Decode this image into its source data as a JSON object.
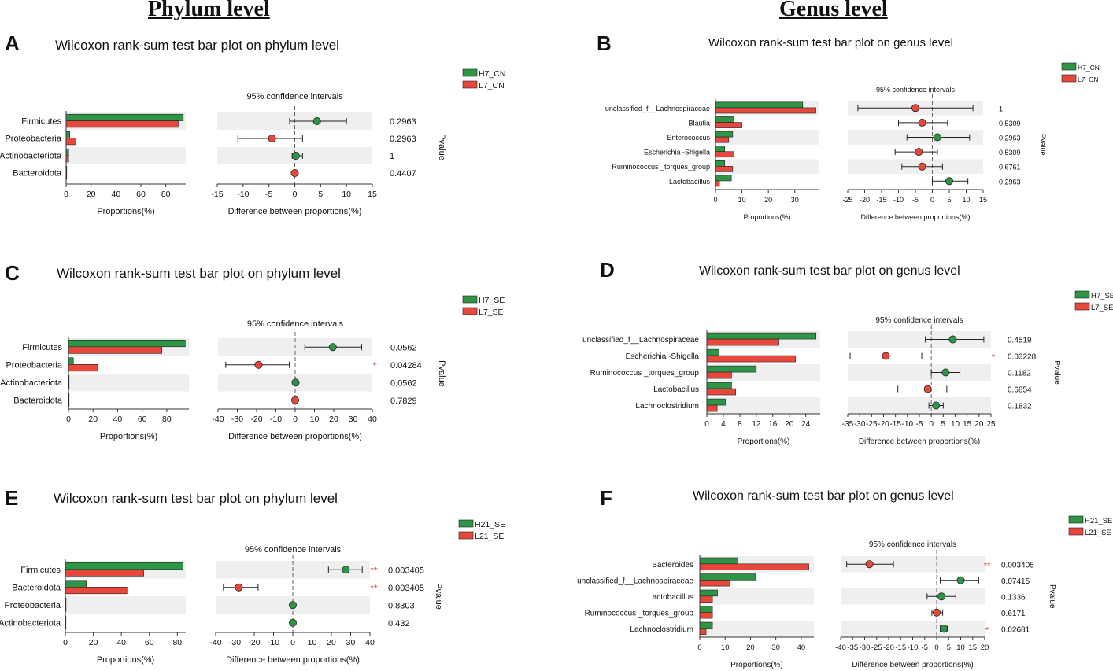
{
  "headings": {
    "phylum": "Phylum level",
    "genus": "Genus level"
  },
  "colors": {
    "first_group": "#2e9446",
    "second_group": "#e8473c",
    "stripe": "#efefef",
    "star": "#e8473c",
    "axis": "#333333"
  },
  "chart_data": [
    {
      "id": "A",
      "type": "bar",
      "title": "Wilcoxon rank-sum test bar plot on phylum level",
      "legend": [
        "H7_CN",
        "L7_CN"
      ],
      "categories": [
        "Firmicutes",
        "Proteobacteria",
        "Actinobacteriota",
        "Bacteroidota"
      ],
      "series": [
        {
          "name": "H7_CN",
          "values": [
            94,
            3,
            2,
            0.5
          ]
        },
        {
          "name": "L7_CN",
          "values": [
            90,
            8,
            2,
            0.5
          ]
        }
      ],
      "bar_xticks": [
        "0",
        "20",
        "40",
        "60",
        "80"
      ],
      "bar_xlim": [
        0,
        96
      ],
      "xlabel": "Proportions(%)",
      "ci_title": "95% confidence intervals",
      "ci_xticks": [
        "-15",
        "-10",
        "-5",
        "0",
        "5",
        "10",
        "15"
      ],
      "ci_xlim": [
        -15,
        15
      ],
      "ci_xlabel": "Difference between proportions(%)",
      "ci": [
        {
          "center": 4.3,
          "low": -1,
          "high": 10,
          "group": "H7_CN"
        },
        {
          "center": -4.4,
          "low": -11,
          "high": 1.5,
          "group": "L7_CN"
        },
        {
          "center": 0.2,
          "low": -0.5,
          "high": 1.5,
          "group": "H7_CN"
        },
        {
          "center": 0,
          "low": 0,
          "high": 0,
          "group": "L7_CN"
        }
      ],
      "pvalues": [
        "0.2963",
        "0.2963",
        "1",
        "0.4407"
      ],
      "stars": [
        "",
        "",
        "",
        ""
      ],
      "pvalue_label": "Pvalue"
    },
    {
      "id": "B",
      "type": "bar",
      "title": "Wilcoxon rank-sum test bar plot on genus level",
      "legend": [
        "H7_CN",
        "L7_CN"
      ],
      "categories": [
        "unclassified_f__Lachnospiraceae",
        "Blautia",
        "Enterococcus",
        "Escherichia -Shigella",
        "Ruminococcus _torques_group",
        "Lactobacillus"
      ],
      "series": [
        {
          "name": "H7_CN",
          "values": [
            33,
            7,
            6.5,
            3.5,
            3.5,
            6
          ]
        },
        {
          "name": "L7_CN",
          "values": [
            38,
            10,
            5,
            7,
            6.5,
            1.5
          ]
        }
      ],
      "bar_xticks": [
        "0",
        "10",
        "20",
        "30"
      ],
      "bar_xlim": [
        0,
        39
      ],
      "xlabel": "Proportions(%)",
      "ci_title": "95% confidence intervals",
      "ci_xticks": [
        "-25",
        "-20",
        "-15",
        "-10",
        "-5",
        "0",
        "5",
        "10",
        "15"
      ],
      "ci_xlim": [
        -25,
        15
      ],
      "ci_xlabel": "Difference between proportions(%)",
      "ci": [
        {
          "center": -5,
          "low": -22,
          "high": 12,
          "group": "L7_CN"
        },
        {
          "center": -3,
          "low": -10,
          "high": 4.5,
          "group": "L7_CN"
        },
        {
          "center": 1.5,
          "low": -7.5,
          "high": 11,
          "group": "H7_CN"
        },
        {
          "center": -4,
          "low": -11,
          "high": 1.5,
          "group": "L7_CN"
        },
        {
          "center": -3,
          "low": -9,
          "high": 3,
          "group": "L7_CN"
        },
        {
          "center": 5,
          "low": 0,
          "high": 10.5,
          "group": "H7_CN"
        }
      ],
      "pvalues": [
        "1",
        "0.5309",
        "0.2963",
        "0.5309",
        "0.6761",
        "0.2963"
      ],
      "stars": [
        "",
        "",
        "",
        "",
        "",
        ""
      ],
      "pvalue_label": "Pvalue"
    },
    {
      "id": "C",
      "type": "bar",
      "title": "Wilcoxon rank-sum test bar plot on phylum level",
      "legend": [
        "H7_SE",
        "L7_SE"
      ],
      "categories": [
        "Firmicutes",
        "Proteobacteria",
        "Actinobacteriota",
        "Bacteroidota"
      ],
      "series": [
        {
          "name": "H7_SE",
          "values": [
            95,
            4,
            0.5,
            0.5
          ]
        },
        {
          "name": "L7_SE",
          "values": [
            76,
            24,
            0.5,
            0.3
          ]
        }
      ],
      "bar_xticks": [
        "0",
        "20",
        "40",
        "60",
        "80"
      ],
      "bar_xlim": [
        0,
        98
      ],
      "xlabel": "Proportions(%)",
      "ci_title": "95% confidence intervals",
      "ci_xticks": [
        "-40",
        "-30",
        "-20",
        "-10",
        "0",
        "10",
        "20",
        "30",
        "40"
      ],
      "ci_xlim": [
        -40,
        40
      ],
      "ci_xlabel": "Difference between proportions(%)",
      "ci": [
        {
          "center": 19.5,
          "low": 5,
          "high": 34.5,
          "group": "H7_SE"
        },
        {
          "center": -19,
          "low": -36,
          "high": -3,
          "group": "L7_SE"
        },
        {
          "center": 0.2,
          "low": 0,
          "high": 0.5,
          "group": "H7_SE"
        },
        {
          "center": 0,
          "low": 0,
          "high": 0,
          "group": "L7_SE"
        }
      ],
      "pvalues": [
        "0.0562",
        "0.04284",
        "0.0562",
        "0.7829"
      ],
      "stars": [
        "",
        "*",
        "",
        ""
      ],
      "pvalue_label": "Pvalue"
    },
    {
      "id": "D",
      "type": "bar",
      "title": "Wilcoxon rank-sum test bar plot on genus level",
      "legend": [
        "H7_SE",
        "L7_SE"
      ],
      "categories": [
        "unclassified_f__Lachnospiraceae",
        "Escherichia -Shigella",
        "Ruminococcus _torques_group",
        "Lactobacillus",
        "Lachnoclostridium"
      ],
      "series": [
        {
          "name": "H7_SE",
          "values": [
            26.5,
            3,
            12,
            6,
            4.5
          ]
        },
        {
          "name": "L7_SE",
          "values": [
            17.5,
            21.5,
            6,
            7,
            2.5
          ]
        }
      ],
      "bar_xticks": [
        "0",
        "4",
        "8",
        "12",
        "16",
        "20",
        "24"
      ],
      "bar_xlim": [
        0,
        27.5
      ],
      "xlabel": "Proportions(%)",
      "ci_title": "95% confidence intervals",
      "ci_xticks": [
        "-35",
        "-30",
        "-25",
        "-20",
        "-15",
        "-10",
        "-5",
        "0",
        "5",
        "10",
        "15",
        "20",
        "25"
      ],
      "ci_xlim": [
        -35,
        25
      ],
      "ci_xlabel": "Difference between proportions(%)",
      "ci": [
        {
          "center": 9,
          "low": -2.5,
          "high": 22,
          "group": "H7_SE"
        },
        {
          "center": -19,
          "low": -34,
          "high": -4,
          "group": "L7_SE"
        },
        {
          "center": 6,
          "low": 0,
          "high": 12,
          "group": "H7_SE"
        },
        {
          "center": -1.5,
          "low": -14,
          "high": 6.5,
          "group": "L7_SE"
        },
        {
          "center": 2,
          "low": -1,
          "high": 5,
          "group": "H7_SE"
        }
      ],
      "pvalues": [
        "0.4519",
        "0.03228",
        "0.1182",
        "0.6854",
        "0.1832"
      ],
      "stars": [
        "",
        "*",
        "",
        "",
        ""
      ],
      "pvalue_label": "Pvalue"
    },
    {
      "id": "E",
      "type": "bar",
      "title": "Wilcoxon rank-sum test bar plot on phylum level",
      "legend": [
        "H21_SE",
        "L21_SE"
      ],
      "categories": [
        "Firmicutes",
        "Bacteroidota",
        "Proteobacteria",
        "Actinobacteriota"
      ],
      "series": [
        {
          "name": "H21_SE",
          "values": [
            84,
            15,
            0.5,
            0.3
          ]
        },
        {
          "name": "L21_SE",
          "values": [
            56,
            44,
            0.5,
            0.3
          ]
        }
      ],
      "bar_xticks": [
        "0",
        "20",
        "40",
        "60",
        "80"
      ],
      "bar_xlim": [
        0,
        86
      ],
      "xlabel": "Proportions(%)",
      "ci_title": "95% confidence intervals",
      "ci_xticks": [
        "-40",
        "-30",
        "-20",
        "-10",
        "0",
        "10",
        "20",
        "30",
        "40"
      ],
      "ci_xlim": [
        -40,
        40
      ],
      "ci_xlabel": "Difference between proportions(%)",
      "ci": [
        {
          "center": 27.5,
          "low": 18.5,
          "high": 36,
          "group": "H21_SE"
        },
        {
          "center": -28,
          "low": -36,
          "high": -18,
          "group": "L21_SE"
        },
        {
          "center": 0,
          "low": 0,
          "high": 0,
          "group": "H21_SE"
        },
        {
          "center": 0,
          "low": 0,
          "high": 0,
          "group": "H21_SE"
        }
      ],
      "pvalues": [
        "0.003405",
        "0.003405",
        "0.8303",
        "0.432"
      ],
      "stars": [
        "**",
        "**",
        "",
        ""
      ],
      "pvalue_label": "Pvalue"
    },
    {
      "id": "F",
      "type": "bar",
      "title": "Wilcoxon rank-sum test bar plot on genus level",
      "legend": [
        "H21_SE",
        "L21_SE"
      ],
      "categories": [
        "Bacteroides",
        "unclassified_f__Lachnospiraceae",
        "Lactobacillus",
        "Ruminococcus _torques_group",
        "Lachnoclostridium"
      ],
      "series": [
        {
          "name": "H21_SE",
          "values": [
            15,
            22,
            7,
            5,
            5
          ]
        },
        {
          "name": "L21_SE",
          "values": [
            43,
            12,
            5,
            5,
            2.5
          ]
        }
      ],
      "bar_xticks": [
        "0",
        "10",
        "20",
        "30",
        "40"
      ],
      "bar_xlim": [
        0,
        45
      ],
      "xlabel": "Proportions(%)",
      "ci_title": "95% confidence intervals",
      "ci_xticks": [
        "-40",
        "-35",
        "-30",
        "-25",
        "-20",
        "-15",
        "-10",
        "-5",
        "0",
        "5",
        "10",
        "15",
        "20"
      ],
      "ci_xlim": [
        -40,
        20
      ],
      "ci_xlabel": "Difference between proportions(%)",
      "ci": [
        {
          "center": -28,
          "low": -37.5,
          "high": -18,
          "group": "L21_SE"
        },
        {
          "center": 10,
          "low": 1.5,
          "high": 17.5,
          "group": "H21_SE"
        },
        {
          "center": 2,
          "low": -4,
          "high": 8,
          "group": "H21_SE"
        },
        {
          "center": 0,
          "low": -2,
          "high": 2.5,
          "group": "L21_SE"
        },
        {
          "center": 3,
          "low": 1.5,
          "high": 4.5,
          "group": "H21_SE"
        }
      ],
      "pvalues": [
        "0.003405",
        "0.07415",
        "0.1336",
        "0.6171",
        "0.02681"
      ],
      "stars": [
        "**",
        "",
        "",
        "",
        "*"
      ],
      "pvalue_label": "Pvalue"
    }
  ]
}
